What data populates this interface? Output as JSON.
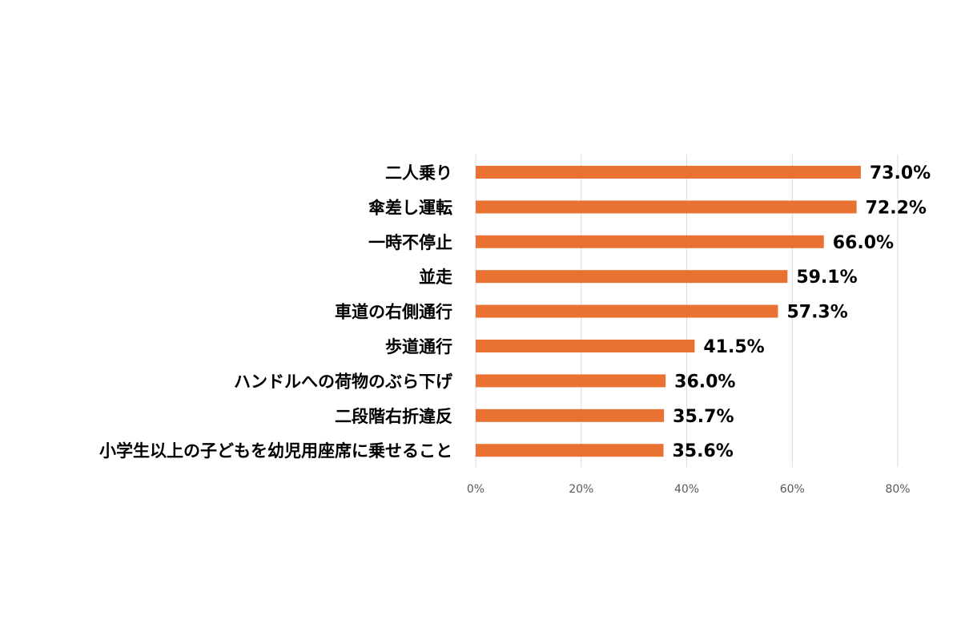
{
  "chart_data": {
    "type": "bar",
    "orientation": "horizontal",
    "title": "",
    "xlabel": "",
    "ylabel": "",
    "categories": [
      "二人乗り",
      "傘差し運転",
      "一時不停止",
      "並走",
      "車道の右側通行",
      "歩道通行",
      "ハンドルへの荷物のぶら下げ",
      "二段階右折違反",
      "小学生以上の子どもを幼児用座席に乗せること"
    ],
    "values": [
      73.0,
      72.2,
      66.0,
      59.1,
      57.3,
      41.5,
      36.0,
      35.7,
      35.6
    ],
    "value_labels": [
      "73.0%",
      "72.2%",
      "66.0%",
      "59.1%",
      "57.3%",
      "41.5%",
      "36.0%",
      "35.7%",
      "35.6%"
    ],
    "xlim": [
      0,
      80
    ],
    "x_ticks": [
      0,
      20,
      40,
      60,
      80
    ],
    "x_tick_labels": [
      "0%",
      "20%",
      "40%",
      "60%",
      "80%"
    ],
    "bar_color": "#e97132",
    "grid": "vertical",
    "grid_color": "#d9d9d9",
    "legend": "none"
  }
}
